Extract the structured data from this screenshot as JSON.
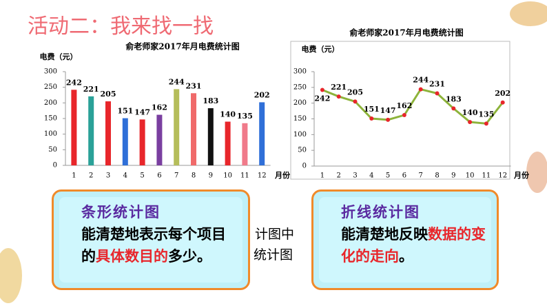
{
  "title": "活动二：我来找一找",
  "chart_data": [
    {
      "type": "bar",
      "title": "俞老师家2017年月电费统计图",
      "ylabel": "电费（元）",
      "xlabel": "月份",
      "categories": [
        "1",
        "2",
        "3",
        "4",
        "5",
        "6",
        "7",
        "8",
        "9",
        "10",
        "11",
        "12"
      ],
      "values": [
        242,
        221,
        205,
        151,
        147,
        162,
        244,
        231,
        183,
        140,
        135,
        202
      ],
      "colors": [
        "#e8262b",
        "#2aa198",
        "#e8262b",
        "#2f6fd8",
        "#e8262b",
        "#7a3fa0",
        "#b5bd5a",
        "#f06a6a",
        "#111111",
        "#e8262b",
        "#f07a8a",
        "#2f6fd8"
      ],
      "ylim": [
        0,
        300
      ],
      "yticks": [
        0,
        50,
        100,
        150,
        200,
        250,
        300
      ]
    },
    {
      "type": "line",
      "title": "俞老师家2017年月电费统计图",
      "ylabel": "电费（元）",
      "xlabel": "月份",
      "categories": [
        "1",
        "2",
        "3",
        "4",
        "5",
        "6",
        "7",
        "8",
        "9",
        "10",
        "11",
        "12"
      ],
      "values": [
        242,
        221,
        205,
        151,
        147,
        162,
        244,
        231,
        183,
        140,
        135,
        202
      ],
      "color": "#8db33a",
      "marker_color": "#e8262b",
      "ylim": [
        0,
        300
      ],
      "yticks": [
        0,
        50,
        100,
        150,
        200,
        250,
        300
      ]
    }
  ],
  "boxes": [
    {
      "heading": "条形统计图",
      "segments": [
        {
          "text": "能清楚地表示每个项目的",
          "color": "#000000"
        },
        {
          "text": "具体数目的",
          "color": "#e8262b"
        },
        {
          "text": "多少",
          "color": "#000000"
        },
        {
          "text": "。",
          "color": "#000000"
        }
      ]
    },
    {
      "heading": "折线统计图",
      "segments": [
        {
          "text": "能清楚地反映",
          "color": "#000000"
        },
        {
          "text": "数据的变化的走向",
          "color": "#e8262b"
        },
        {
          "text": "。",
          "color": "#000000"
        }
      ]
    }
  ],
  "occluded_text": [
    "计图中",
    "统计图"
  ]
}
